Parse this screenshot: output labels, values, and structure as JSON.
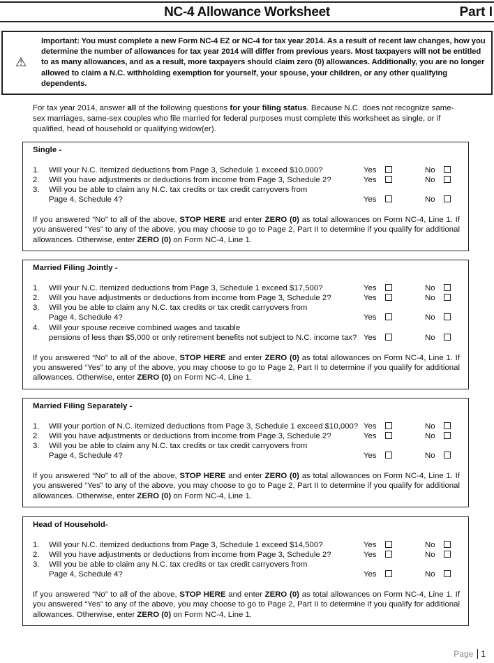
{
  "header": {
    "title": "NC-4 Allowance Worksheet",
    "part": "Part I"
  },
  "important": {
    "icon": "warning-icon",
    "text": "Important: You must complete a new Form NC-4 EZ or NC-4 for tax year 2014. As a result of recent law changes, how you determine the number of allowances for tax year 2014 will differ from previous years. Most taxpayers will not be entitled to as many allowances, and as a result, more taxpayers should claim zero (0) allowances. Additionally, you are no longer allowed to claim a N.C. withholding exemption for yourself, your spouse, your children, or any other qualifying dependents."
  },
  "intro": [
    {
      "t": "For tax year 2014, answer "
    },
    {
      "t": "all",
      "b": true
    },
    {
      "t": " of the following questions "
    },
    {
      "t": "for your filing status",
      "b": true
    },
    {
      "t": ".  Because N.C. does not recognize same-sex marriages, same-sex couples who file married for federal purposes must complete this worksheet as single, or if qualified, head of household or qualifying widow(er)."
    }
  ],
  "labels": {
    "yes": "Yes",
    "no": "No"
  },
  "footer_text": [
    {
      "t": "If you answered “No” to all of the above, "
    },
    {
      "t": "STOP HERE",
      "b": true
    },
    {
      "t": " and enter "
    },
    {
      "t": "ZERO (0)",
      "b": true
    },
    {
      "t": " as total allowances on Form NC-4, Line 1. If you answered “Yes” to any of the above, you may choose to go to Page 2, Part II to determine if you qualify for additional allowances.  Otherwise, enter "
    },
    {
      "t": "ZERO (0)",
      "b": true
    },
    {
      "t": " on Form NC-4, Line 1."
    }
  ],
  "sections": [
    {
      "title": "Single -",
      "questions": [
        {
          "num": "1.",
          "lines": [
            "Will your N.C. itemized deductions from Page 3, Schedule 1 exceed $10,000?"
          ]
        },
        {
          "num": "2.",
          "lines": [
            "Will you have adjustments or deductions from income from Page 3, Schedule 2?"
          ]
        },
        {
          "num": "3.",
          "lines": [
            "Will you be able to claim any N.C. tax credits or tax credit carryovers from",
            "Page 4, Schedule 4?"
          ]
        }
      ]
    },
    {
      "title": "Married Filing Jointly -",
      "questions": [
        {
          "num": "1.",
          "lines": [
            "Will your N.C. itemized deductions from Page 3, Schedule 1 exceed $17,500?"
          ]
        },
        {
          "num": "2.",
          "lines": [
            "Will you have adjustments or deductions from income from Page 3, Schedule 2?"
          ]
        },
        {
          "num": "3.",
          "lines": [
            "Will you be able to claim any N.C. tax credits or tax credit carryovers from",
            "Page 4, Schedule 4?"
          ]
        },
        {
          "num": "4.",
          "lines": [
            "Will your spouse receive combined wages and taxable",
            "pensions of less than $5,000 or only retirement benefits not subject to N.C. income tax?"
          ]
        }
      ]
    },
    {
      "title": "Married Filing Separately -",
      "questions": [
        {
          "num": "1.",
          "lines": [
            "Will your portion of N.C. itemized deductions from Page 3, Schedule 1 exceed $10,000?"
          ]
        },
        {
          "num": "2.",
          "lines": [
            "Will you have adjustments or deductions from income from Page 3, Schedule 2?"
          ]
        },
        {
          "num": "3.",
          "lines": [
            "Will you be able to claim any N.C. tax credits or tax credit carryovers from",
            "Page 4, Schedule 4?"
          ]
        }
      ]
    },
    {
      "title": "Head of Household-",
      "questions": [
        {
          "num": "1.",
          "lines": [
            "Will your N.C. itemized deductions from Page 3, Schedule 1 exceed $14,500?"
          ]
        },
        {
          "num": "2.",
          "lines": [
            "Will you have adjustments or deductions from income from Page 3, Schedule 2?"
          ]
        },
        {
          "num": "3.",
          "lines": [
            "Will you be able to claim any N.C. tax credits or tax credit carryovers from",
            "Page 4, Schedule 4?"
          ]
        }
      ]
    }
  ],
  "page_footer": {
    "label": "Page",
    "number": "1"
  }
}
